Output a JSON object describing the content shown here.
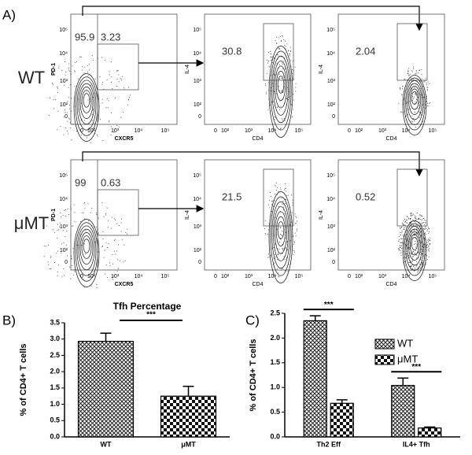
{
  "panel_labels": [
    "A)",
    "B)",
    "C)"
  ],
  "flow": {
    "ticks": [
      "0",
      "10²",
      "10³",
      "10⁴",
      "10⁵"
    ],
    "rows": [
      {
        "label": "WT",
        "plots": [
          {
            "values": [
              95.9,
              3.23
            ],
            "x_label": "CXCR5",
            "y_label": "PD-1"
          },
          {
            "values": [
              30.8
            ],
            "x_label": "CD4",
            "y_label": "IL-4"
          },
          {
            "values": [
              2.04
            ],
            "x_label": "CD4",
            "y_label": "IL-4"
          }
        ]
      },
      {
        "label": "μMT",
        "plots": [
          {
            "values": [
              99,
              0.63
            ],
            "x_label": "CXCR5",
            "y_label": "PD-1"
          },
          {
            "values": [
              21.5
            ],
            "x_label": "CD4",
            "y_label": "IL-4"
          },
          {
            "values": [
              0.52
            ],
            "x_label": "CD4",
            "y_label": "IL-4"
          }
        ]
      }
    ]
  },
  "chart_data": [
    {
      "type": "bar",
      "title": "Tfh Percentage",
      "y_label": "% of CD4+ T cells",
      "categories": [
        "WT",
        "μMT"
      ],
      "values": [
        2.93,
        1.25
      ],
      "errors": [
        0.25,
        0.3
      ],
      "patterns": [
        "crosshatch",
        "checker"
      ],
      "ylim": [
        0,
        3.5
      ],
      "yticks": [
        {
          "value": 0,
          "label": "0.0"
        },
        0.5,
        {
          "value": 1,
          "label": "1.0"
        },
        1.5,
        {
          "value": 2,
          "label": "2.0"
        },
        2.5,
        {
          "value": 3,
          "label": "3.0"
        },
        3.5
      ],
      "annotations": [
        "***"
      ]
    },
    {
      "type": "grouped_bar",
      "y_label": "% of CD4+ T cells",
      "categories": [
        "Th2 Eff",
        "IL4+ Tfh"
      ],
      "series": [
        {
          "name": "WT",
          "pattern": "crosshatch",
          "values": [
            2.35,
            1.04
          ],
          "errors": [
            0.1,
            0.15
          ]
        },
        {
          "name": "μMT",
          "pattern": "checker",
          "values": [
            0.68,
            0.18
          ],
          "errors": [
            0.07,
            0.02
          ]
        }
      ],
      "ylim": [
        0,
        2.5
      ],
      "yticks": [
        {
          "value": 0,
          "label": "0.0"
        },
        0.5,
        {
          "value": 1,
          "label": "1.0"
        },
        1.5,
        {
          "value": 2,
          "label": "2.0"
        },
        2.5
      ],
      "annotations": [
        "***",
        "***"
      ]
    }
  ]
}
